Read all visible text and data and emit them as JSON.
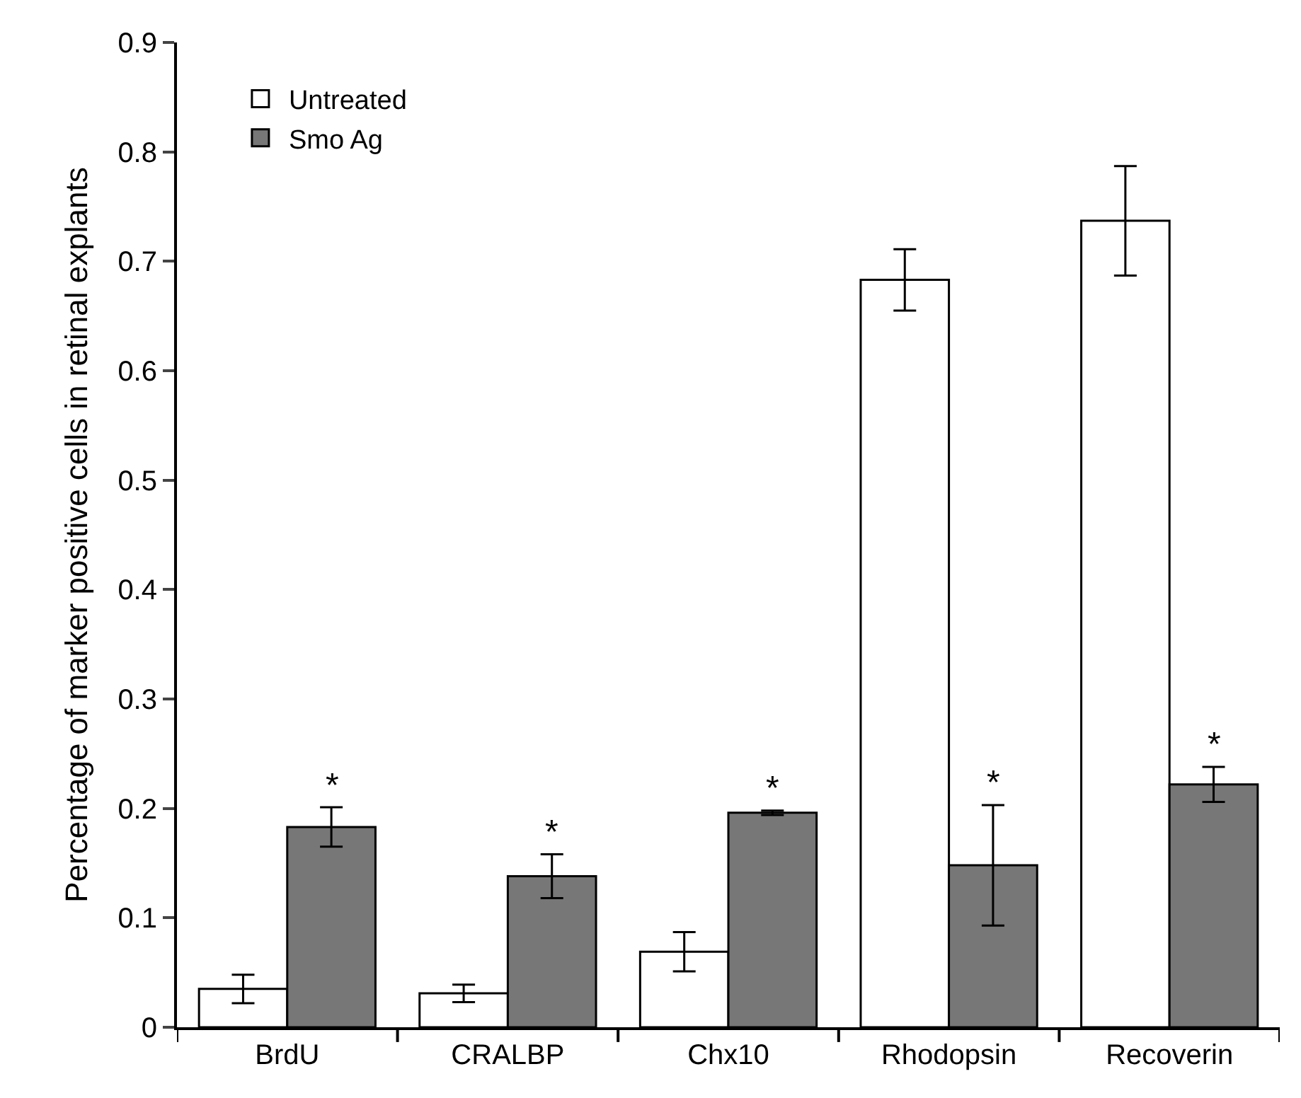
{
  "chart_data": {
    "type": "bar",
    "ylabel": "Percentage of marker positive cells in retinal explants",
    "categories": [
      "BrdU",
      "CRALBP",
      "Chx10",
      "Rhodopsin",
      "Recoverin"
    ],
    "series": [
      {
        "name": "Untreated",
        "color": "#ffffff",
        "values": [
          0.035,
          0.031,
          0.069,
          0.683,
          0.737
        ],
        "errors": [
          0.013,
          0.008,
          0.018,
          0.028,
          0.05
        ]
      },
      {
        "name": "Smo Ag",
        "color": "#777777",
        "values": [
          0.183,
          0.138,
          0.196,
          0.148,
          0.222
        ],
        "errors": [
          0.018,
          0.02,
          0.002,
          0.055,
          0.016
        ]
      }
    ],
    "annotations": [
      {
        "text": "*",
        "x": "BrdU",
        "y": 0.183
      },
      {
        "text": "*",
        "x": "CRALBP",
        "y": 0.138
      },
      {
        "text": "*",
        "x": "Chx10",
        "y": 0.196
      },
      {
        "text": "*",
        "x": "Rhodopsin",
        "y": 0.148
      },
      {
        "text": "*",
        "x": "Recoverin",
        "y": 0.222
      }
    ],
    "ylim": [
      0,
      0.9
    ],
    "yticks": [
      0,
      0.1,
      0.2,
      0.3,
      0.4,
      0.5,
      0.6,
      0.7,
      0.8,
      0.9
    ],
    "legend": "top left"
  }
}
